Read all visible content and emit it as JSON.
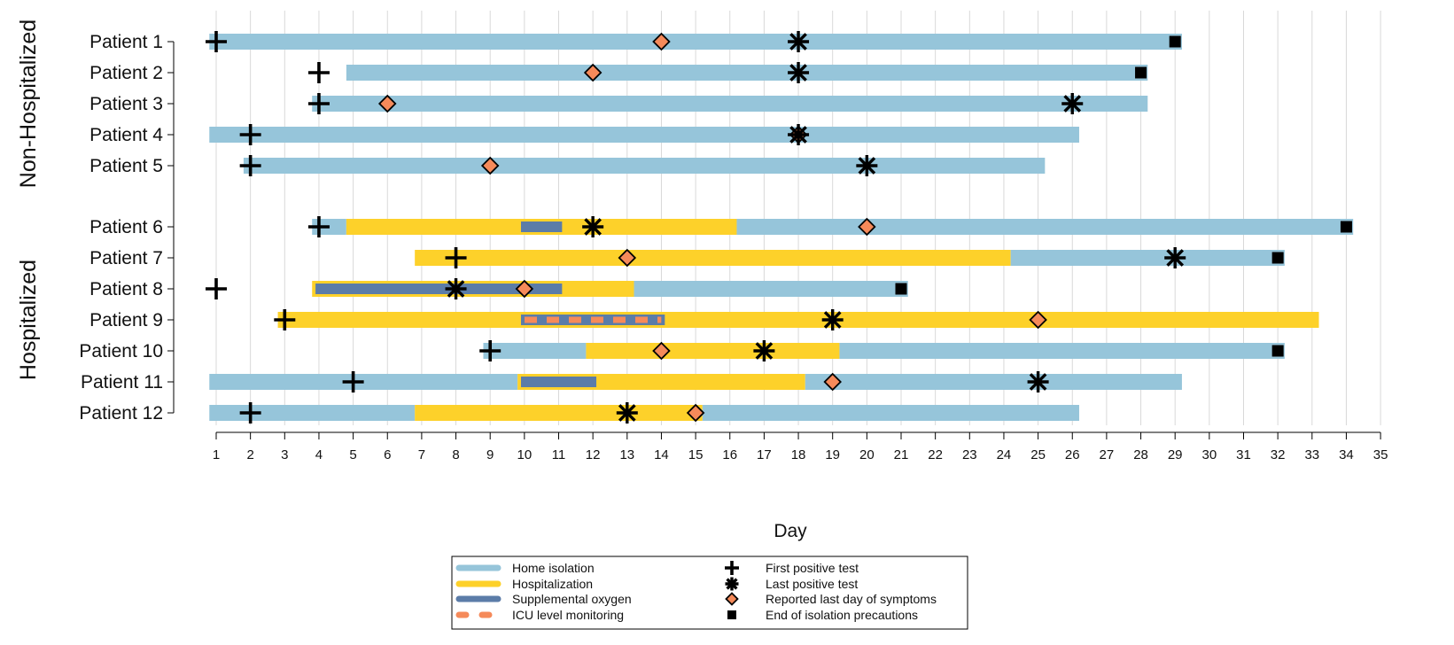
{
  "chart_data": {
    "type": "timeline",
    "xlabel": "Day",
    "xlim": [
      1,
      35
    ],
    "xticks": [
      1,
      2,
      3,
      4,
      5,
      6,
      7,
      8,
      9,
      10,
      11,
      12,
      13,
      14,
      15,
      16,
      17,
      18,
      19,
      20,
      21,
      22,
      23,
      24,
      25,
      26,
      27,
      28,
      29,
      30,
      31,
      32,
      33,
      34,
      35
    ],
    "grid": "vertical",
    "groups": [
      {
        "label": "Non-Hospitalized",
        "patients": [
          "Patient 1",
          "Patient 2",
          "Patient 3",
          "Patient 4",
          "Patient 5"
        ]
      },
      {
        "label": "Hospitalized",
        "patients": [
          "Patient 6",
          "Patient 7",
          "Patient 8",
          "Patient 9",
          "Patient 10",
          "Patient 11",
          "Patient 12"
        ]
      }
    ],
    "patients": [
      {
        "name": "Patient 1",
        "segments": [
          {
            "type": "home",
            "start": 0.8,
            "end": 29.2
          }
        ],
        "first_positive": 1,
        "last_positive": 18,
        "last_symptoms": 14,
        "end_isolation": 29
      },
      {
        "name": "Patient 2",
        "segments": [
          {
            "type": "home",
            "start": 4.8,
            "end": 28.2
          }
        ],
        "first_positive": 4,
        "last_positive": 18,
        "last_symptoms": 12,
        "end_isolation": 28
      },
      {
        "name": "Patient 3",
        "segments": [
          {
            "type": "home",
            "start": 3.8,
            "end": 28.2
          }
        ],
        "first_positive": 4,
        "last_positive": 26,
        "last_symptoms": 6,
        "end_isolation": null
      },
      {
        "name": "Patient 4",
        "segments": [
          {
            "type": "home",
            "start": 0.8,
            "end": 26.2
          }
        ],
        "first_positive": 2,
        "last_positive": 18,
        "last_symptoms": 18,
        "end_isolation": null
      },
      {
        "name": "Patient 5",
        "segments": [
          {
            "type": "home",
            "start": 1.8,
            "end": 25.2
          }
        ],
        "first_positive": 2,
        "last_positive": 20,
        "last_symptoms": 9,
        "end_isolation": null
      },
      {
        "name": "Patient 6",
        "segments": [
          {
            "type": "home",
            "start": 3.8,
            "end": 4.8
          },
          {
            "type": "hosp",
            "start": 4.8,
            "end": 16.2
          },
          {
            "type": "home",
            "start": 16.2,
            "end": 34.2
          },
          {
            "type": "oxygen",
            "start": 9.9,
            "end": 11.1
          }
        ],
        "first_positive": 4,
        "last_positive": 12,
        "last_symptoms": 20,
        "end_isolation": 34
      },
      {
        "name": "Patient 7",
        "segments": [
          {
            "type": "hosp",
            "start": 6.8,
            "end": 24.2
          },
          {
            "type": "home",
            "start": 24.2,
            "end": 32.2
          }
        ],
        "first_positive": 8,
        "last_positive": 29,
        "last_symptoms": 13,
        "end_isolation": 32
      },
      {
        "name": "Patient 8",
        "segments": [
          {
            "type": "hosp",
            "start": 3.8,
            "end": 13.2
          },
          {
            "type": "home",
            "start": 13.2,
            "end": 21.2
          },
          {
            "type": "oxygen",
            "start": 3.9,
            "end": 11.1
          }
        ],
        "first_positive": 1,
        "last_positive": 8,
        "last_symptoms": 10,
        "end_isolation": 21
      },
      {
        "name": "Patient 9",
        "segments": [
          {
            "type": "hosp",
            "start": 2.8,
            "end": 33.2
          },
          {
            "type": "oxygen",
            "start": 9.9,
            "end": 14.1
          },
          {
            "type": "icu",
            "start": 9.9,
            "end": 14.1
          }
        ],
        "first_positive": 3,
        "last_positive": 19,
        "last_symptoms": 25,
        "end_isolation": null
      },
      {
        "name": "Patient 10",
        "segments": [
          {
            "type": "home",
            "start": 8.8,
            "end": 11.8
          },
          {
            "type": "hosp",
            "start": 11.8,
            "end": 19.2
          },
          {
            "type": "home",
            "start": 19.2,
            "end": 32.2
          }
        ],
        "first_positive": 9,
        "last_positive": 17,
        "last_symptoms": 14,
        "end_isolation": 32
      },
      {
        "name": "Patient 11",
        "segments": [
          {
            "type": "home",
            "start": 0.8,
            "end": 9.8
          },
          {
            "type": "hosp",
            "start": 9.8,
            "end": 18.2
          },
          {
            "type": "home",
            "start": 18.2,
            "end": 29.2
          },
          {
            "type": "oxygen",
            "start": 9.9,
            "end": 12.1
          }
        ],
        "first_positive": 5,
        "last_positive": 25,
        "last_symptoms": 19,
        "end_isolation": null
      },
      {
        "name": "Patient 12",
        "segments": [
          {
            "type": "home",
            "start": 0.8,
            "end": 6.8
          },
          {
            "type": "hosp",
            "start": 6.8,
            "end": 15.2
          },
          {
            "type": "home",
            "start": 15.2,
            "end": 26.2
          }
        ],
        "first_positive": 2,
        "last_positive": 13,
        "last_symptoms": 15,
        "end_isolation": null
      }
    ],
    "legend": {
      "position": "bottom-center",
      "items": [
        {
          "key": "home",
          "label": "Home isolation"
        },
        {
          "key": "hosp",
          "label": "Hospitalization"
        },
        {
          "key": "oxygen",
          "label": "Supplemental oxygen"
        },
        {
          "key": "icu",
          "label": "ICU level monitoring"
        },
        {
          "key": "first_positive",
          "label": "First positive test"
        },
        {
          "key": "last_positive",
          "label": "Last positive test"
        },
        {
          "key": "last_symptoms",
          "label": "Reported last day of symptoms"
        },
        {
          "key": "end_isolation",
          "label": "End of isolation precautions"
        }
      ]
    },
    "colors": {
      "home": "#96c5da",
      "hosp": "#fdd12a",
      "oxygen": "#5b7ca8",
      "icu": "#f58a5a",
      "diamond": "#f58a5a",
      "marker": "#000000",
      "grid": "#d9d9d9"
    }
  }
}
